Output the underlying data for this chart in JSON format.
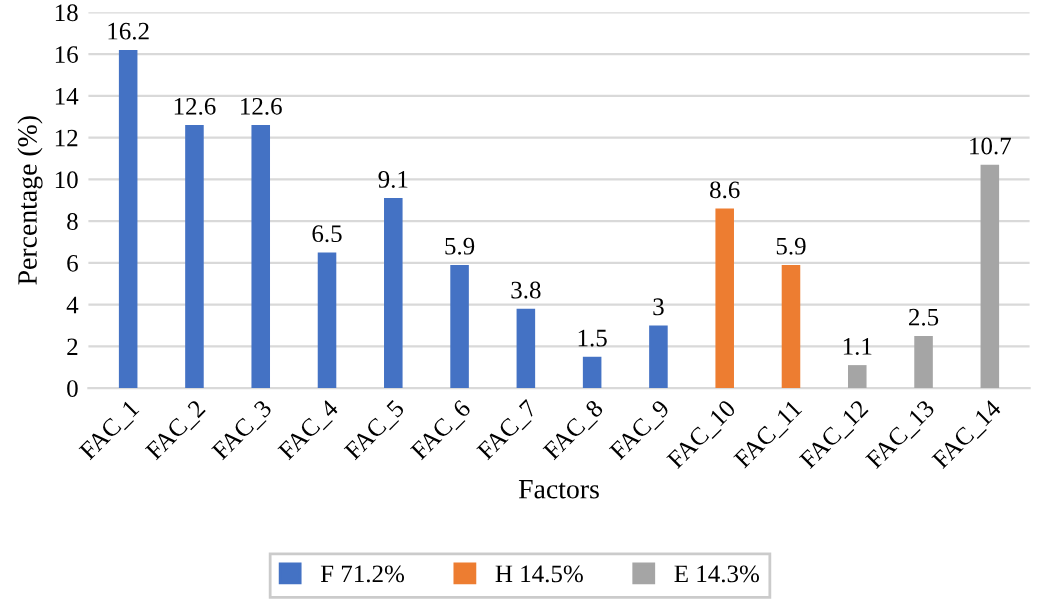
{
  "chart_data": {
    "type": "bar",
    "stacked": true,
    "xlabel": "Factors",
    "ylabel": "Percentage (%)",
    "categories": [
      "FAC_1",
      "FAC_2",
      "FAC_3",
      "FAC_4",
      "FAC_5",
      "FAC_6",
      "FAC_7",
      "FAC_8",
      "FAC_9",
      "FAC_10",
      "FAC_11",
      "FAC_12",
      "FAC_13",
      "FAC_14"
    ],
    "series": [
      {
        "name": "F 71.2%",
        "color": "#4472c4",
        "values": [
          16.2,
          12.6,
          12.6,
          6.5,
          9.1,
          5.9,
          3.8,
          1.5,
          3,
          null,
          null,
          null,
          null,
          null
        ]
      },
      {
        "name": "H 14.5%",
        "color": "#ed7d31",
        "values": [
          null,
          null,
          null,
          null,
          null,
          null,
          null,
          null,
          null,
          8.6,
          5.9,
          null,
          null,
          null
        ]
      },
      {
        "name": "E 14.3%",
        "color": "#a5a5a5",
        "values": [
          null,
          null,
          null,
          null,
          null,
          null,
          null,
          null,
          null,
          null,
          null,
          1.1,
          2.5,
          10.7
        ]
      }
    ],
    "ylim": [
      0,
      18
    ],
    "yticks": [
      0,
      2,
      4,
      6,
      8,
      10,
      12,
      14,
      16,
      18
    ],
    "grid": "y",
    "legend": "bottom",
    "data_labels": true
  }
}
